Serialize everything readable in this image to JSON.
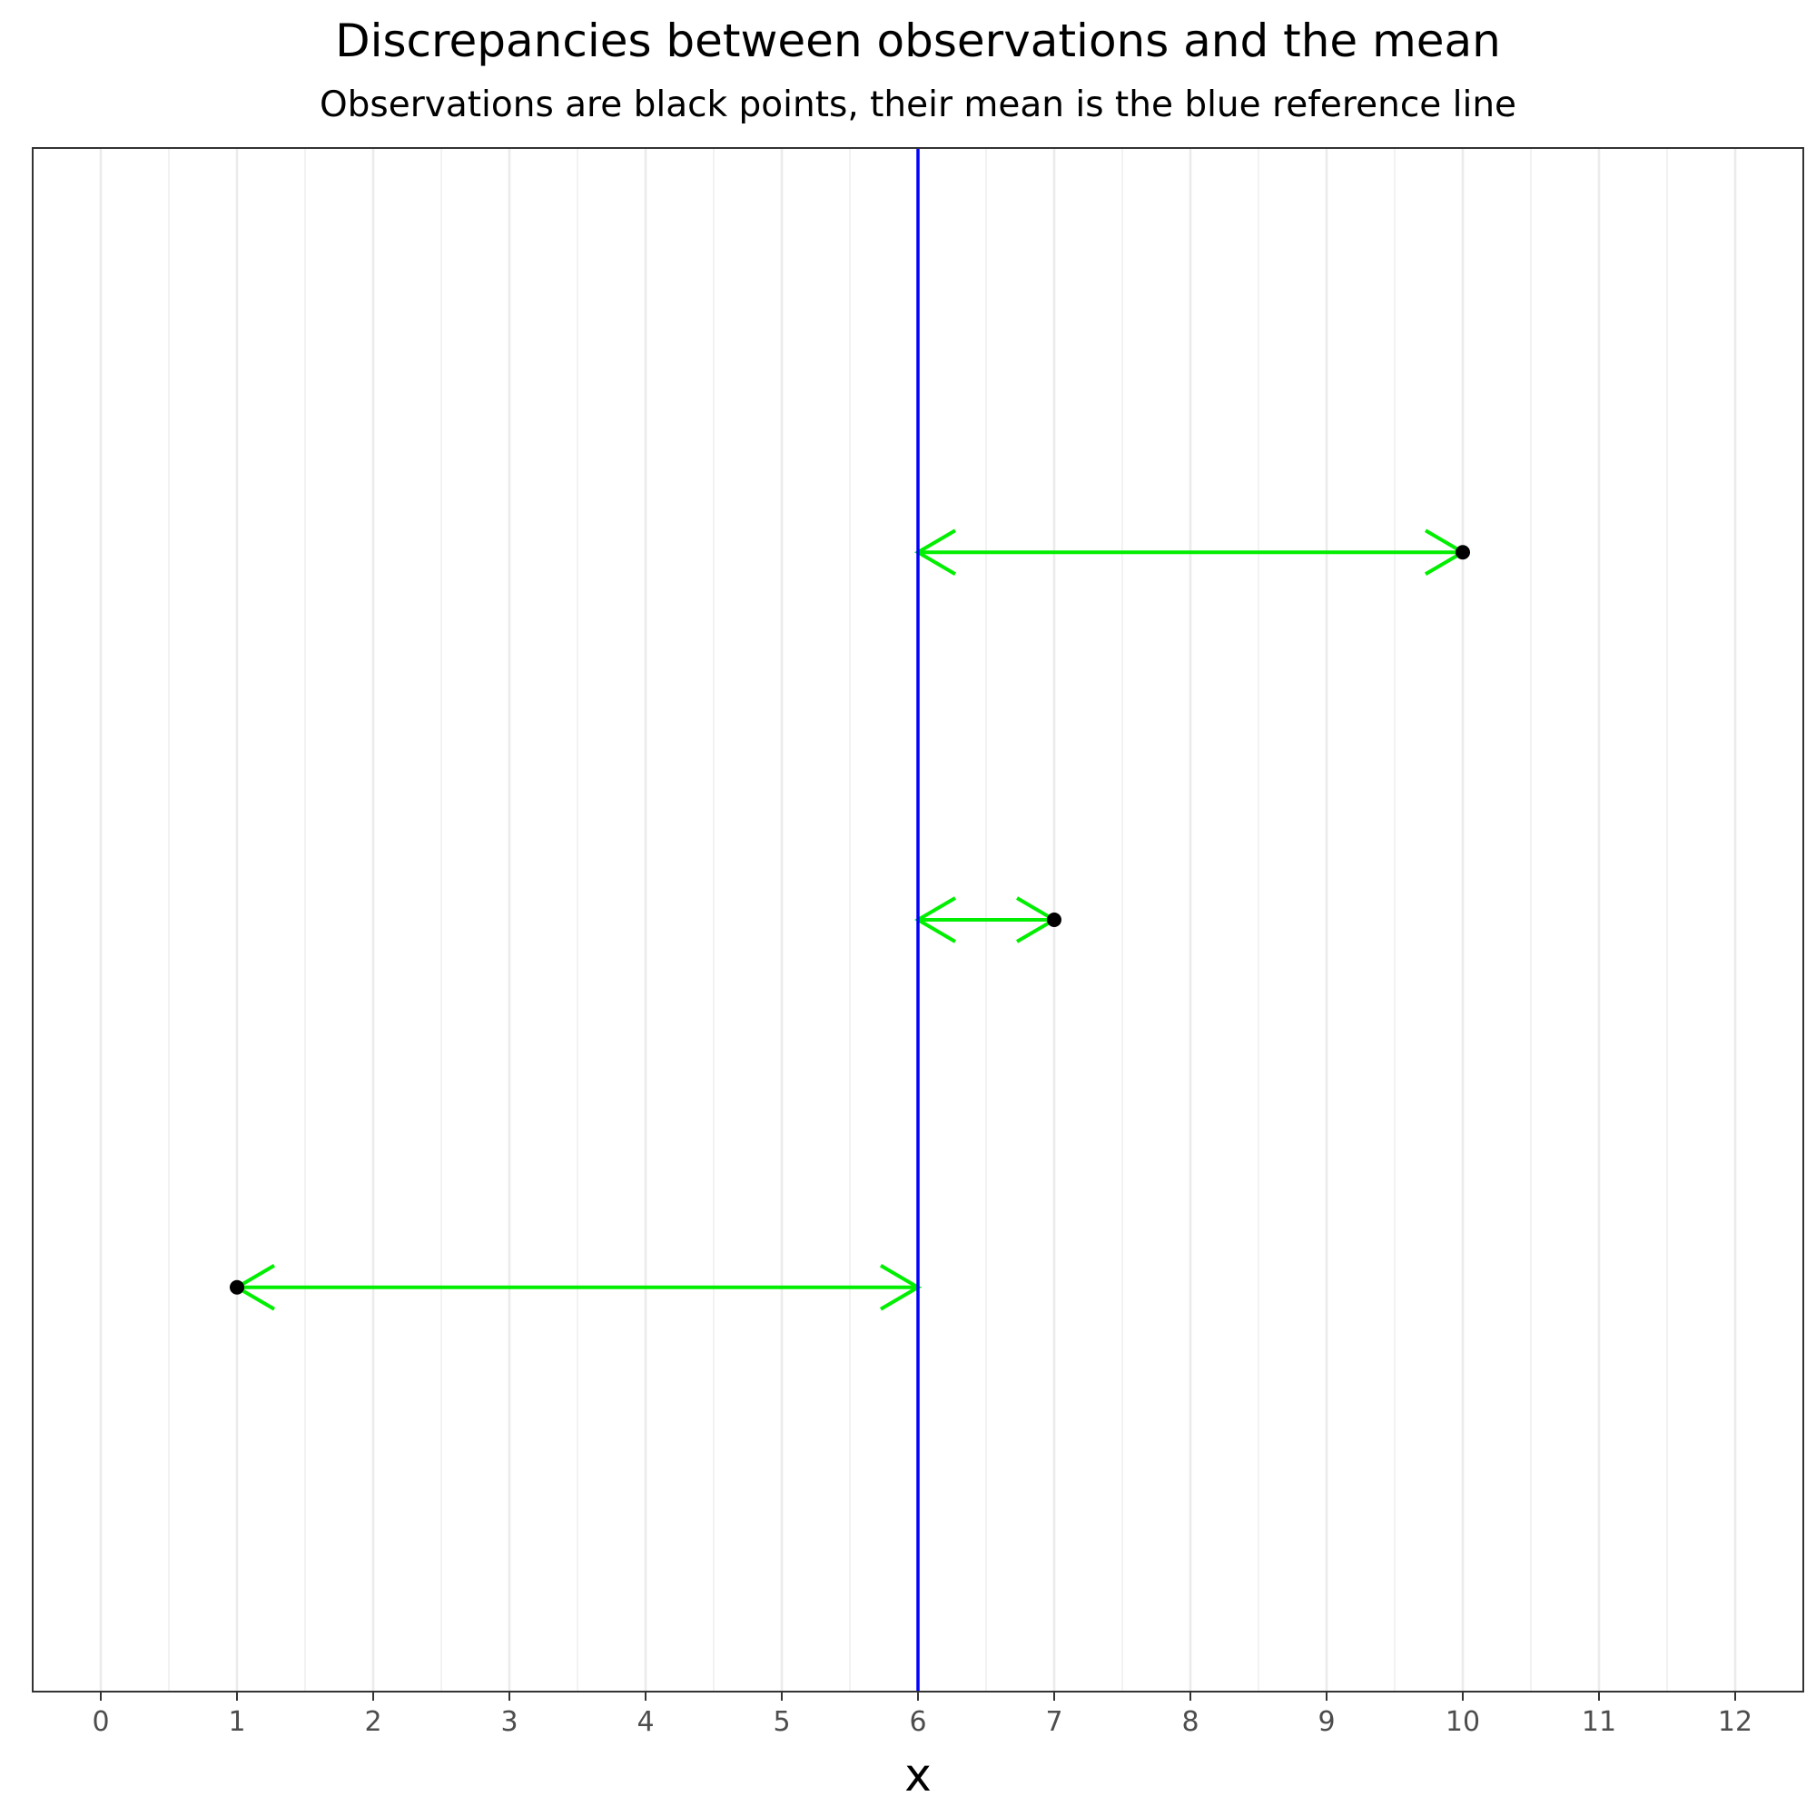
{
  "chart_data": {
    "type": "scatter",
    "title": "Discrepancies between observations and the mean",
    "subtitle": "Observations are black points, their mean is the blue reference line",
    "xlabel": "x",
    "ylabel": "",
    "xlim": [
      -0.5,
      12.5
    ],
    "x_ticks": [
      0,
      1,
      2,
      3,
      4,
      5,
      6,
      7,
      8,
      9,
      10,
      11,
      12
    ],
    "grid": true,
    "mean": 6,
    "points": [
      {
        "x": 10,
        "y": 3
      },
      {
        "x": 7,
        "y": 2
      },
      {
        "x": 1,
        "y": 1
      }
    ],
    "colors": {
      "points": "#000000",
      "mean_line": "#0000ff",
      "arrows": "#00ee00"
    }
  }
}
